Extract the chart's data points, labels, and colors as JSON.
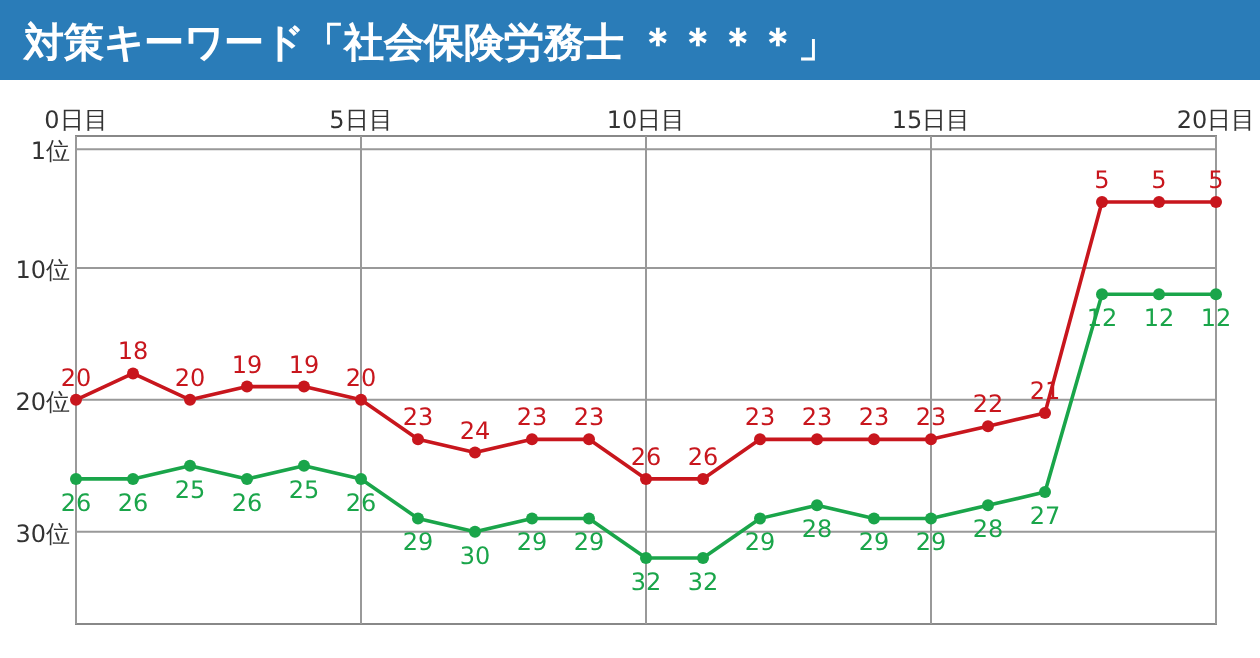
{
  "chart_data": {
    "type": "line",
    "title": "対策キーワード「社会保険労務士 ＊＊＊＊」",
    "x": [
      0,
      1,
      2,
      3,
      4,
      5,
      6,
      7,
      8,
      9,
      10,
      11,
      12,
      13,
      14,
      15,
      16,
      17,
      18,
      19,
      20
    ],
    "series": [
      {
        "color": "#c8161d",
        "values": [
          20,
          18,
          20,
          19,
          19,
          20,
          23,
          24,
          23,
          23,
          26,
          26,
          23,
          23,
          23,
          23,
          22,
          21,
          5,
          5,
          5
        ]
      },
      {
        "color": "#1aa54a",
        "values": [
          26,
          26,
          25,
          26,
          25,
          26,
          29,
          30,
          29,
          29,
          32,
          32,
          29,
          28,
          29,
          29,
          28,
          27,
          12,
          12,
          12
        ]
      }
    ],
    "xlim": [
      0,
      20
    ],
    "xticks": [
      {
        "value": 0,
        "label": "0日目"
      },
      {
        "value": 5,
        "label": "5日目"
      },
      {
        "value": 10,
        "label": "10日目"
      },
      {
        "value": 15,
        "label": "15日目"
      },
      {
        "value": 20,
        "label": "20日目"
      }
    ],
    "ylim": [
      37,
      0
    ],
    "yticks": [
      {
        "value": 1,
        "label": "1位"
      },
      {
        "value": 10,
        "label": "10位"
      },
      {
        "value": 20,
        "label": "20位"
      },
      {
        "value": 30,
        "label": "30位"
      }
    ],
    "grid": true,
    "marker": "circle",
    "line_style": "solid",
    "data_labels": true
  }
}
